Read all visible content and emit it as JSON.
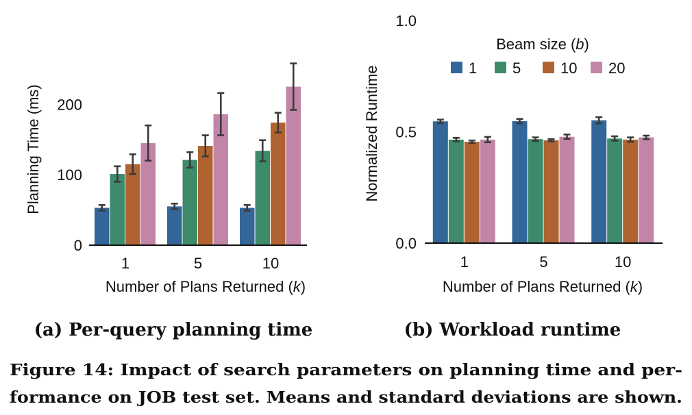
{
  "chart_data": [
    {
      "type": "bar",
      "subcaption": "(a) Per-query planning time",
      "xlabel_text": "Number of Plans Returned (",
      "xlabel_var": "k",
      "xlabel_close": ")",
      "ylabel": "Planning Time (ms)",
      "categories": [
        "1",
        "5",
        "10"
      ],
      "ylim": [
        0,
        245
      ],
      "yticks": [
        0,
        100,
        200
      ],
      "series": [
        {
          "key": "b1",
          "values": [
            53,
            55,
            53
          ],
          "err": [
            4,
            4,
            4
          ],
          "color": "#336699"
        },
        {
          "key": "b5",
          "values": [
            101,
            121,
            134
          ],
          "err": [
            11,
            11,
            15
          ],
          "color": "#3d8b6b"
        },
        {
          "key": "b10",
          "values": [
            115,
            141,
            174
          ],
          "err": [
            14,
            15,
            14
          ],
          "color": "#b06330"
        },
        {
          "key": "b20",
          "values": [
            145,
            186,
            225
          ],
          "err": [
            25,
            30,
            33
          ],
          "color": "#c285a8"
        }
      ]
    },
    {
      "type": "bar",
      "subcaption": "(b) Workload runtime",
      "xlabel_text": "Number of Plans Returned (",
      "xlabel_var": "k",
      "xlabel_close": ")",
      "ylabel": "Normalized Runtime",
      "categories": [
        "1",
        "5",
        "10"
      ],
      "ylim": [
        0,
        1.0
      ],
      "yticks": [
        "0.0",
        "0.5",
        "1.0"
      ],
      "legend": {
        "title_text": "Beam size (",
        "title_var": "b",
        "title_close": ")",
        "placement": "top-center",
        "entries": [
          "1",
          "5",
          "10",
          "20"
        ]
      },
      "series": [
        {
          "key": "b1",
          "values": [
            0.547,
            0.548,
            0.552
          ],
          "err": [
            0.008,
            0.01,
            0.014
          ],
          "color": "#336699"
        },
        {
          "key": "b5",
          "values": [
            0.465,
            0.467,
            0.47
          ],
          "err": [
            0.008,
            0.008,
            0.01
          ],
          "color": "#3d8b6b"
        },
        {
          "key": "b10",
          "values": [
            0.455,
            0.462,
            0.465
          ],
          "err": [
            0.006,
            0.005,
            0.01
          ],
          "color": "#b06330"
        },
        {
          "key": "b20",
          "values": [
            0.465,
            0.478,
            0.475
          ],
          "err": [
            0.012,
            0.01,
            0.008
          ],
          "color": "#c285a8"
        }
      ]
    }
  ],
  "figure_caption": {
    "line1": "Figure 14: Impact of search parameters on planning time and per-",
    "line2": "formance on JOB test set. Means and standard deviations are shown."
  }
}
